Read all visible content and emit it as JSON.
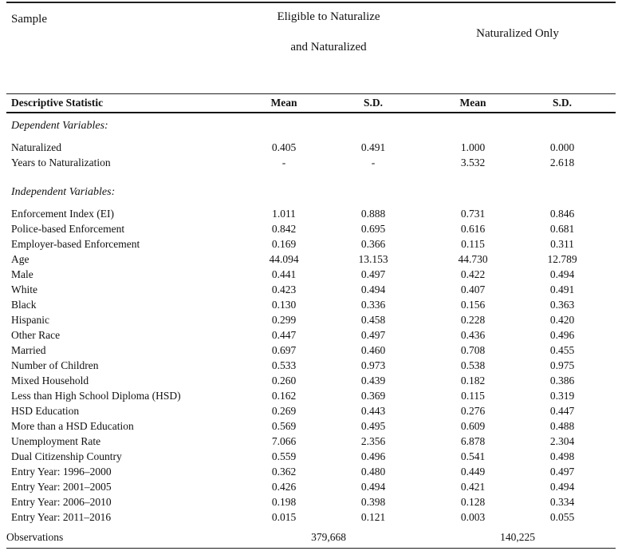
{
  "table": {
    "sample_label": "Sample",
    "group_headers": {
      "group1_line1": "Eligible to Naturalize",
      "group1_line2": "and Naturalized",
      "group2": "Naturalized Only"
    },
    "column_headers": {
      "stat": "Descriptive Statistic",
      "cols": [
        "Mean",
        "S.D.",
        "Mean",
        "S.D."
      ]
    },
    "rows": [
      {
        "type": "section",
        "label": "Dependent Variables:"
      },
      {
        "type": "data",
        "label": "Naturalized",
        "values": [
          "0.405",
          "0.491",
          "1.000",
          "0.000"
        ]
      },
      {
        "type": "data",
        "label": "Years to Naturalization",
        "values": [
          "-",
          "-",
          "3.532",
          "2.618"
        ]
      },
      {
        "type": "section",
        "label": "Independent Variables:"
      },
      {
        "type": "data",
        "label": "Enforcement Index (EI)",
        "values": [
          "1.011",
          "0.888",
          "0.731",
          "0.846"
        ]
      },
      {
        "type": "data",
        "label": "Police-based Enforcement",
        "values": [
          "0.842",
          "0.695",
          "0.616",
          "0.681"
        ]
      },
      {
        "type": "data",
        "label": "Employer-based Enforcement",
        "values": [
          "0.169",
          "0.366",
          "0.115",
          "0.311"
        ]
      },
      {
        "type": "data",
        "label": "Age",
        "values": [
          "44.094",
          "13.153",
          "44.730",
          "12.789"
        ]
      },
      {
        "type": "data",
        "label": "Male",
        "values": [
          "0.441",
          "0.497",
          "0.422",
          "0.494"
        ]
      },
      {
        "type": "data",
        "label": "White",
        "values": [
          "0.423",
          "0.494",
          "0.407",
          "0.491"
        ]
      },
      {
        "type": "data",
        "label": "Black",
        "values": [
          "0.130",
          "0.336",
          "0.156",
          "0.363"
        ]
      },
      {
        "type": "data",
        "label": "Hispanic",
        "values": [
          "0.299",
          "0.458",
          "0.228",
          "0.420"
        ]
      },
      {
        "type": "data",
        "label": "Other Race",
        "values": [
          "0.447",
          "0.497",
          "0.436",
          "0.496"
        ]
      },
      {
        "type": "data",
        "label": "Married",
        "values": [
          "0.697",
          "0.460",
          "0.708",
          "0.455"
        ]
      },
      {
        "type": "data",
        "label": "Number of Children",
        "values": [
          "0.533",
          "0.973",
          "0.538",
          "0.975"
        ]
      },
      {
        "type": "data",
        "label": "Mixed Household",
        "values": [
          "0.260",
          "0.439",
          "0.182",
          "0.386"
        ]
      },
      {
        "type": "data",
        "label": "Less than High School Diploma (HSD)",
        "values": [
          "0.162",
          "0.369",
          "0.115",
          "0.319"
        ]
      },
      {
        "type": "data",
        "label": "HSD Education",
        "values": [
          "0.269",
          "0.443",
          "0.276",
          "0.447"
        ]
      },
      {
        "type": "data",
        "label": "More than a HSD Education",
        "values": [
          "0.569",
          "0.495",
          "0.609",
          "0.488"
        ]
      },
      {
        "type": "data",
        "label": "Unemployment Rate",
        "values": [
          "7.066",
          "2.356",
          "6.878",
          "2.304"
        ]
      },
      {
        "type": "data",
        "label": "Dual Citizenship Country",
        "values": [
          "0.559",
          "0.496",
          "0.541",
          "0.498"
        ]
      },
      {
        "type": "data",
        "label": "Entry Year: 1996–2000",
        "values": [
          "0.362",
          "0.480",
          "0.449",
          "0.497"
        ]
      },
      {
        "type": "data",
        "label": "Entry Year: 2001–2005",
        "values": [
          "0.426",
          "0.494",
          "0.421",
          "0.494"
        ]
      },
      {
        "type": "data",
        "label": "Entry Year: 2006–2010",
        "values": [
          "0.198",
          "0.398",
          "0.128",
          "0.334"
        ]
      },
      {
        "type": "data",
        "label": "Entry Year: 2011–2016",
        "values": [
          "0.015",
          "0.121",
          "0.003",
          "0.055"
        ]
      }
    ],
    "observations": {
      "label": "Observations",
      "values": [
        "379,668",
        "140,225"
      ]
    }
  }
}
